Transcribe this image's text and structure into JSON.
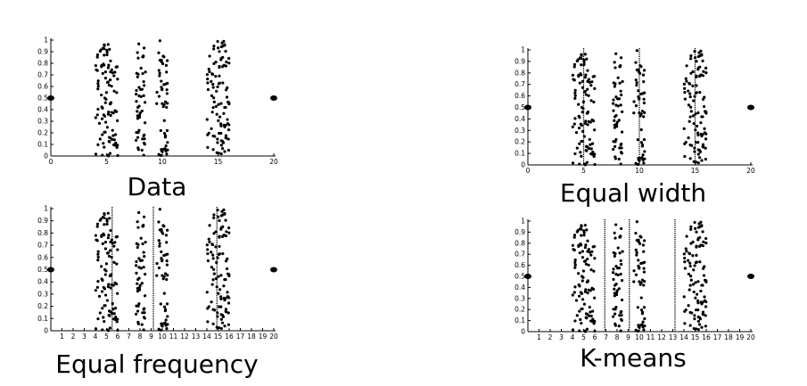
{
  "chart_data": [
    {
      "type": "scatter",
      "title": "Data",
      "xlim": [
        0,
        20
      ],
      "ylim": [
        0,
        1
      ],
      "x_ticks": [
        "0",
        "5",
        "10",
        "15",
        "20"
      ],
      "y_ticks": [
        "0",
        "0.1",
        "0.2",
        "0.3",
        "0.4",
        "0.5",
        "0.6",
        "0.7",
        "0.8",
        "0.9",
        "1"
      ],
      "clusters": [
        {
          "x_range": [
            4,
            6
          ],
          "count": 100
        },
        {
          "x_range": [
            7.5,
            8.5
          ],
          "count": 50
        },
        {
          "x_range": [
            9.5,
            10.5
          ],
          "count": 50
        },
        {
          "x_range": [
            14,
            16
          ],
          "count": 100
        }
      ],
      "outliers": [
        {
          "x": 0,
          "y": 0.5
        },
        {
          "x": 20,
          "y": 0.5
        }
      ],
      "cut_points": []
    },
    {
      "type": "scatter",
      "title": "Equal width",
      "xlim": [
        0,
        20
      ],
      "ylim": [
        0,
        1
      ],
      "x_ticks": [
        "0",
        "5",
        "10",
        "15",
        "20"
      ],
      "y_ticks": [
        "0",
        "0.1",
        "0.2",
        "0.3",
        "0.4",
        "0.5",
        "0.6",
        "0.7",
        "0.8",
        "0.9",
        "1"
      ],
      "clusters": [
        {
          "x_range": [
            4,
            6
          ],
          "count": 100
        },
        {
          "x_range": [
            7.5,
            8.5
          ],
          "count": 50
        },
        {
          "x_range": [
            9.5,
            10.5
          ],
          "count": 50
        },
        {
          "x_range": [
            14,
            16
          ],
          "count": 100
        }
      ],
      "outliers": [
        {
          "x": 0,
          "y": 0.5
        },
        {
          "x": 20,
          "y": 0.5
        }
      ],
      "cut_points": [
        5,
        10,
        15
      ]
    },
    {
      "type": "scatter",
      "title": "Equal frequency",
      "xlim": [
        0,
        20
      ],
      "ylim": [
        0,
        1
      ],
      "x_ticks": [
        "",
        "1",
        "2",
        "3",
        "4",
        "5",
        "6",
        "7",
        "8",
        "9",
        "10",
        "11",
        "12",
        "13",
        "14",
        "15",
        "16",
        "17",
        "18",
        "19",
        "20"
      ],
      "y_ticks": [
        "0",
        "0.1",
        "0.2",
        "0.3",
        "0.4",
        "0.5",
        "0.6",
        "0.7",
        "0.8",
        "0.9",
        "1"
      ],
      "clusters": [
        {
          "x_range": [
            4,
            6
          ],
          "count": 100
        },
        {
          "x_range": [
            7.5,
            8.5
          ],
          "count": 50
        },
        {
          "x_range": [
            9.5,
            10.5
          ],
          "count": 50
        },
        {
          "x_range": [
            14,
            16
          ],
          "count": 100
        }
      ],
      "outliers": [
        {
          "x": 0,
          "y": 0.5
        },
        {
          "x": 20,
          "y": 0.5
        }
      ],
      "cut_points": [
        5.5,
        9.2,
        14.9
      ]
    },
    {
      "type": "scatter",
      "title": "K-means",
      "xlim": [
        0,
        20
      ],
      "ylim": [
        0,
        1
      ],
      "x_ticks": [
        "",
        "1",
        "2",
        "3",
        "4",
        "5",
        "6",
        "7",
        "8",
        "9",
        "10",
        "11",
        "12",
        "13",
        "14",
        "15",
        "16",
        "17",
        "18",
        "19",
        "20"
      ],
      "y_ticks": [
        "0",
        "0.1",
        "0.2",
        "0.3",
        "0.4",
        "0.5",
        "0.6",
        "0.7",
        "0.8",
        "0.9",
        "1"
      ],
      "clusters": [
        {
          "x_range": [
            4,
            6
          ],
          "count": 100
        },
        {
          "x_range": [
            7.5,
            8.5
          ],
          "count": 50
        },
        {
          "x_range": [
            9.5,
            10.5
          ],
          "count": 50
        },
        {
          "x_range": [
            14,
            16
          ],
          "count": 100
        }
      ],
      "outliers": [
        {
          "x": 0,
          "y": 0.5
        },
        {
          "x": 20,
          "y": 0.5
        }
      ],
      "cut_points": [
        6.9,
        9.1,
        13.2
      ]
    }
  ]
}
